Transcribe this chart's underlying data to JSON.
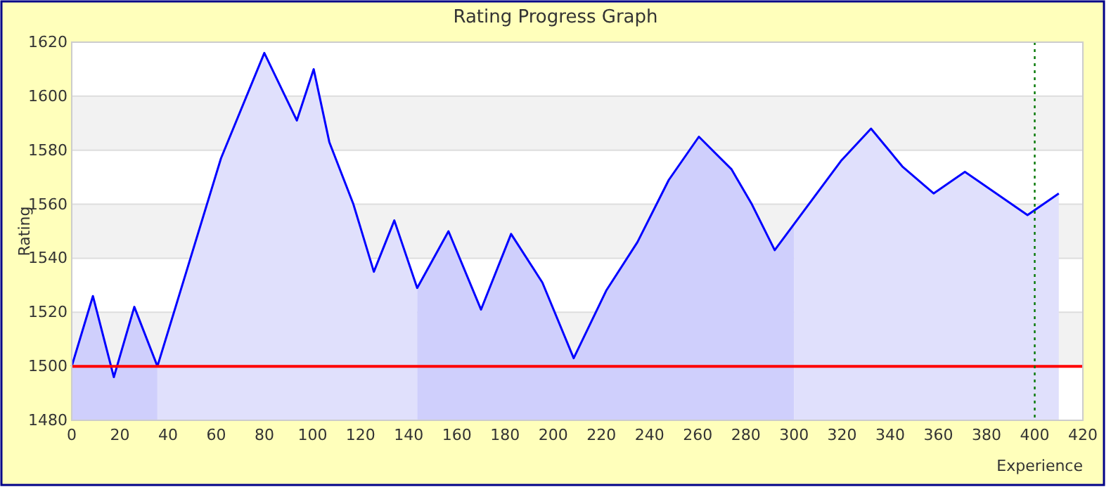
{
  "chart_data": {
    "type": "area",
    "title": "Rating Progress Graph",
    "xlabel": "Experience",
    "ylabel": "Rating",
    "xlim": [
      0,
      420
    ],
    "xticks": [
      0,
      20,
      40,
      60,
      80,
      100,
      120,
      140,
      160,
      180,
      200,
      220,
      240,
      260,
      280,
      300,
      320,
      340,
      360,
      380,
      400,
      420
    ],
    "ylim": [
      1480,
      1620
    ],
    "yticks": [
      1480,
      1500,
      1520,
      1540,
      1560,
      1580,
      1600,
      1620
    ],
    "grid": "y",
    "series": [
      {
        "color": "#cfcffc",
        "x": [
          0,
          8.8,
          17.5,
          26,
          35.6
        ],
        "values": [
          1500,
          1526,
          1496,
          1522,
          1500
        ]
      },
      {
        "color": "#e0e0fc",
        "x": [
          35.6,
          62,
          80,
          93.5,
          100.5,
          107,
          117,
          125.5,
          134,
          143.5
        ],
        "values": [
          1500,
          1577,
          1616,
          1591,
          1610,
          1583,
          1560,
          1535,
          1554,
          1529
        ]
      },
      {
        "color": "#cfcffc",
        "x": [
          143.5,
          156.5,
          170,
          182.5,
          195.5,
          208.5,
          222,
          235,
          248,
          260.5,
          274,
          282.5,
          292,
          300
        ],
        "values": [
          1529,
          1550,
          1521,
          1549,
          1531,
          1503,
          1528,
          1546,
          1569,
          1585,
          1573,
          1560,
          1543,
          1553
        ]
      },
      {
        "color": "#e0e0fc",
        "x": [
          300,
          319.5,
          332,
          345,
          358,
          371,
          397,
          410
        ],
        "values": [
          1553,
          1576,
          1588,
          1574,
          1564,
          1572,
          1556,
          1564
        ]
      },
      {
        "type": "line",
        "color": "#0000ff",
        "x": [
          0,
          8.8,
          17.5,
          26,
          35.6,
          62,
          80,
          93.5,
          100.5,
          107,
          117,
          125.5,
          134,
          143.5,
          156.5,
          170,
          182.5,
          195.5,
          208.5,
          222,
          235,
          248,
          260.5,
          274,
          282.5,
          292,
          319.5,
          332,
          345,
          358,
          371,
          397,
          410
        ],
        "values": [
          1500,
          1526,
          1496,
          1522,
          1500,
          1577,
          1616,
          1591,
          1610,
          1583,
          1560,
          1535,
          1554,
          1529,
          1550,
          1521,
          1549,
          1531,
          1503,
          1528,
          1546,
          1569,
          1585,
          1573,
          1560,
          1543,
          1576,
          1588,
          1574,
          1564,
          1572,
          1556,
          1564
        ]
      }
    ],
    "ref_lines": [
      {
        "axis": "y",
        "value": 1500,
        "color": "#ff0000",
        "line_style": "solid"
      },
      {
        "axis": "x",
        "value": 400,
        "color": "#007700",
        "line_style": "dotted"
      }
    ]
  }
}
